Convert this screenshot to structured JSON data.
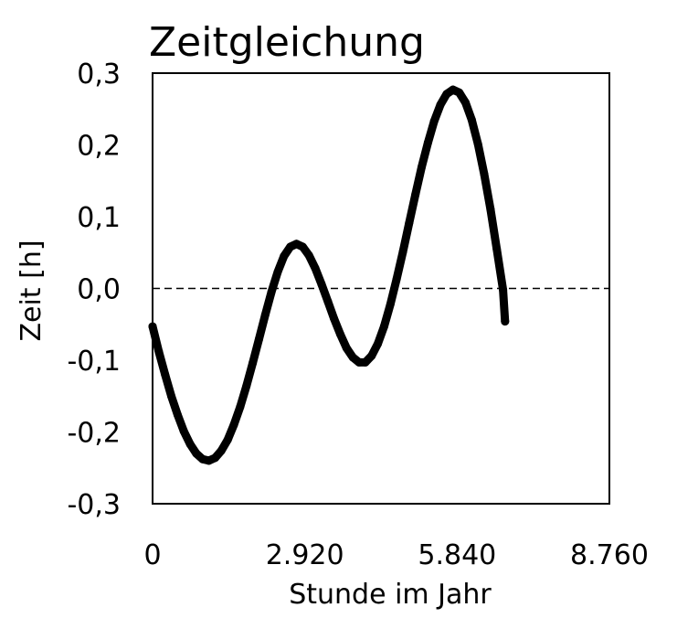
{
  "chart_data": {
    "type": "scatter",
    "title": "Zeitgleichung",
    "xlabel": "Stunde im Jahr",
    "ylabel": "Zeit [h]",
    "xlim": [
      0,
      8760
    ],
    "ylim": [
      -0.3,
      0.3
    ],
    "xticks": [
      0,
      2920,
      5840,
      8760
    ],
    "xtick_labels": [
      "0",
      "2.920",
      "5.840",
      "8.760"
    ],
    "yticks": [
      -0.3,
      -0.2,
      -0.1,
      0.0,
      0.1,
      0.2,
      0.3
    ],
    "ytick_labels": [
      "-0,3",
      "-0,2",
      "-0,1",
      "0,0",
      "0,1",
      "0,2",
      "0,3"
    ],
    "reference_line": {
      "y": 0.0,
      "style": "dashed"
    },
    "grid": false,
    "legend": "none",
    "series": [
      {
        "color": "#000000",
        "marker": "dot",
        "points": [
          [
            0,
            -0.053
          ],
          [
            120,
            -0.088
          ],
          [
            240,
            -0.12
          ],
          [
            360,
            -0.15
          ],
          [
            480,
            -0.176
          ],
          [
            600,
            -0.199
          ],
          [
            720,
            -0.217
          ],
          [
            840,
            -0.23
          ],
          [
            960,
            -0.238
          ],
          [
            1080,
            -0.24
          ],
          [
            1200,
            -0.236
          ],
          [
            1320,
            -0.226
          ],
          [
            1440,
            -0.211
          ],
          [
            1560,
            -0.19
          ],
          [
            1680,
            -0.165
          ],
          [
            1800,
            -0.136
          ],
          [
            1920,
            -0.104
          ],
          [
            2040,
            -0.071
          ],
          [
            2160,
            -0.037
          ],
          [
            2280,
            -0.005
          ],
          [
            2400,
            0.023
          ],
          [
            2520,
            0.045
          ],
          [
            2640,
            0.058
          ],
          [
            2760,
            0.062
          ],
          [
            2880,
            0.058
          ],
          [
            3000,
            0.046
          ],
          [
            3120,
            0.028
          ],
          [
            3240,
            0.006
          ],
          [
            3360,
            -0.018
          ],
          [
            3480,
            -0.042
          ],
          [
            3600,
            -0.064
          ],
          [
            3720,
            -0.083
          ],
          [
            3840,
            -0.096
          ],
          [
            3960,
            -0.103
          ],
          [
            4080,
            -0.103
          ],
          [
            4200,
            -0.094
          ],
          [
            4320,
            -0.077
          ],
          [
            4440,
            -0.053
          ],
          [
            4560,
            -0.022
          ],
          [
            4680,
            0.013
          ],
          [
            4800,
            0.051
          ],
          [
            4920,
            0.091
          ],
          [
            5040,
            0.131
          ],
          [
            5160,
            0.169
          ],
          [
            5280,
            0.203
          ],
          [
            5400,
            0.233
          ],
          [
            5520,
            0.256
          ],
          [
            5640,
            0.271
          ],
          [
            5760,
            0.277
          ],
          [
            5880,
            0.273
          ],
          [
            6000,
            0.259
          ],
          [
            6120,
            0.235
          ],
          [
            6240,
            0.201
          ],
          [
            6360,
            0.159
          ],
          [
            6480,
            0.11
          ],
          [
            6600,
            0.055
          ],
          [
            6720,
            -0.002
          ],
          [
            6760,
            -0.046
          ]
        ]
      }
    ]
  }
}
